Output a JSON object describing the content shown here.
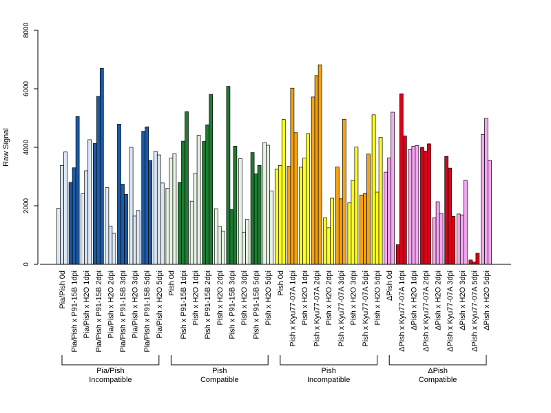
{
  "chart_data": {
    "type": "bar",
    "ylabel": "Raw Signal",
    "ylim": [
      0,
      8000
    ],
    "yticks": [
      0,
      2000,
      4000,
      6000,
      8000
    ],
    "grid": false,
    "legend": "none",
    "colors": {
      "light_blue": "#dbe7f3",
      "dark_blue": "#1c5aa6",
      "light_green": "#e6f2e3",
      "dark_green": "#1f7a33",
      "yellow": "#ffff22",
      "orange": "#f5a20f",
      "pink": "#f5a6f0",
      "red": "#d4061a"
    },
    "categories": [
      {
        "label": "Pia/Pish 0d",
        "color": "light_blue",
        "values": [
          1920,
          3380,
          3840
        ]
      },
      {
        "label": "Pia/Pish x P91-15B 1dpi",
        "color": "dark_blue",
        "values": [
          2800,
          3300,
          5050
        ]
      },
      {
        "label": "Pia/Pish x H2O 1dpi",
        "color": "light_blue",
        "values": [
          2420,
          3200,
          4260
        ]
      },
      {
        "label": "Pia/Pish x P91-15B 2dpi",
        "color": "dark_blue",
        "values": [
          4130,
          5740,
          6700
        ]
      },
      {
        "label": "Pia/Pish x H2O 2dpi",
        "color": "light_blue",
        "values": [
          2620,
          1310,
          1060
        ]
      },
      {
        "label": "Pia/Pish x P91-15B 3dpi",
        "color": "dark_blue",
        "values": [
          4790,
          2740,
          2390
        ]
      },
      {
        "label": "Pia/Pish x H2O 3dpi",
        "color": "light_blue",
        "values": [
          4000,
          1650,
          1840
        ]
      },
      {
        "label": "Pia/Pish x P91-15B 5dpi",
        "color": "dark_blue",
        "values": [
          4550,
          4700,
          3550
        ]
      },
      {
        "label": "Pia/Pish x H2O 5dpi",
        "color": "light_blue",
        "values": [
          3860,
          3740,
          2780
        ]
      },
      {
        "label": "Pish 0d",
        "color": "light_green",
        "values": [
          2600,
          3630,
          3780
        ]
      },
      {
        "label": "Pish x P91-15B 1dpi",
        "color": "dark_green",
        "values": [
          2800,
          4210,
          5220
        ]
      },
      {
        "label": "Pish x H2O 1dpi",
        "color": "light_green",
        "values": [
          2160,
          3110,
          4410
        ]
      },
      {
        "label": "Pish x P91-15B 2dpi",
        "color": "dark_green",
        "values": [
          4200,
          4770,
          5810
        ]
      },
      {
        "label": "Pish x H2O 2dpi",
        "color": "light_green",
        "values": [
          1900,
          1300,
          1130
        ]
      },
      {
        "label": "Pish x P91-15B 3dpi",
        "color": "dark_green",
        "values": [
          6080,
          1870,
          4040
        ]
      },
      {
        "label": "Pish x H2O 3dpi",
        "color": "light_green",
        "values": [
          3610,
          1100,
          1540
        ]
      },
      {
        "label": "Pish x P91-15B 5dpi",
        "color": "dark_green",
        "values": [
          3820,
          3090,
          3380
        ]
      },
      {
        "label": "Pish x H2O 5dpi",
        "color": "light_green",
        "values": [
          4160,
          4070,
          2510
        ]
      },
      {
        "label": "Pish 0d",
        "color": "yellow",
        "values": [
          3250,
          3380,
          4950
        ]
      },
      {
        "label": "Pish x Kyu77-07A 1dpi",
        "color": "orange",
        "values": [
          3350,
          6020,
          4500
        ]
      },
      {
        "label": "Pish x H2O 1dpi",
        "color": "yellow",
        "values": [
          3320,
          3630,
          4470
        ]
      },
      {
        "label": "Pish x Kyu77-07A 2dpi",
        "color": "orange",
        "values": [
          5720,
          6450,
          6820
        ]
      },
      {
        "label": "Pish x H2O 2dpi",
        "color": "yellow",
        "values": [
          1590,
          1250,
          2260
        ]
      },
      {
        "label": "Pish x Kyu77-07A 3dpi",
        "color": "orange",
        "values": [
          3330,
          2240,
          4960
        ]
      },
      {
        "label": "Pish x H2O 3dpi",
        "color": "yellow",
        "values": [
          2100,
          2870,
          4010
        ]
      },
      {
        "label": "Pish x Kyu77-07A 5dpi",
        "color": "orange",
        "values": [
          2370,
          2420,
          3770
        ]
      },
      {
        "label": "Pish x H2O 5dpi",
        "color": "yellow",
        "values": [
          5110,
          2470,
          4340
        ]
      },
      {
        "label": "ΔPish 0d",
        "color": "pink",
        "values": [
          3150,
          3640,
          5200
        ]
      },
      {
        "label": "ΔPish x Kyu77-07A 1dpi",
        "color": "red",
        "values": [
          670,
          5830,
          4390
        ]
      },
      {
        "label": "ΔPish x H2O 1dpi",
        "color": "pink",
        "values": [
          3920,
          4040,
          4060
        ]
      },
      {
        "label": "ΔPish x Kyu77-07A 2dpi",
        "color": "red",
        "values": [
          4000,
          3870,
          4120
        ]
      },
      {
        "label": "ΔPish x H2O 2dpi",
        "color": "pink",
        "values": [
          1590,
          2140,
          1740
        ]
      },
      {
        "label": "ΔPish x Kyu77-07A 3dpi",
        "color": "red",
        "values": [
          3690,
          3290,
          1640
        ]
      },
      {
        "label": "ΔPish x H2O 3dpi",
        "color": "pink",
        "values": [
          1720,
          1690,
          2870
        ]
      },
      {
        "label": "ΔPish x Kyu77-07A 5dpi",
        "color": "red",
        "values": [
          150,
          80,
          380
        ]
      },
      {
        "label": "ΔPish x H2O 5dpi",
        "color": "pink",
        "values": [
          4440,
          4990,
          3550
        ]
      }
    ],
    "groups": [
      {
        "line1": "Pia/Pish",
        "line2": "Incompatible",
        "first": 0,
        "last": 8
      },
      {
        "line1": "Pish",
        "line2": "Compatible",
        "first": 9,
        "last": 17
      },
      {
        "line1": "Pish",
        "line2": "Incompatible",
        "first": 18,
        "last": 26
      },
      {
        "line1": "ΔPish",
        "line2": "Compatible",
        "first": 27,
        "last": 35
      }
    ]
  }
}
